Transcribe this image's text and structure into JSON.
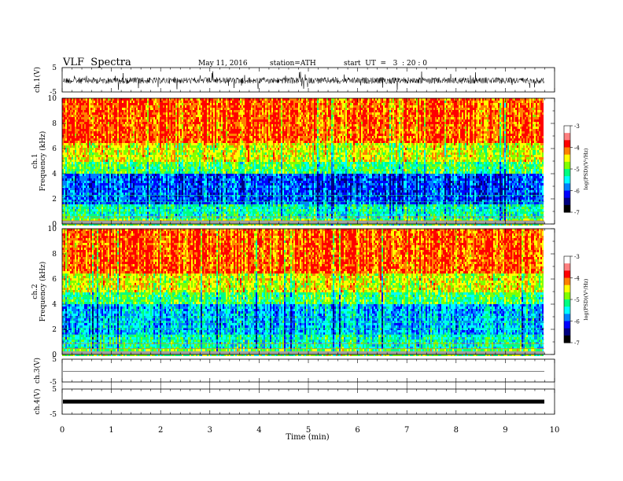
{
  "header": {
    "title": "VLF  Spectra",
    "date": "May 11, 2016",
    "station": "station=ATH",
    "start": "start  UT  =   3  : 20 : 0"
  },
  "chart_data": [
    {
      "type": "line",
      "name": "ch1-waveform",
      "ylabel": "ch.1(V)",
      "ylim": [
        -5,
        5
      ],
      "yticks": [
        "-5",
        "5"
      ],
      "xlim": [
        0,
        10
      ],
      "trace_color": "#000000"
    },
    {
      "type": "heatmap",
      "name": "ch1-spectrogram",
      "ylabel": "ch.1\nFrequency (kHz)",
      "ylabel_lines": [
        "ch.1",
        "Frequency  (kHz)"
      ],
      "ylim": [
        0,
        10
      ],
      "yticks": [
        "0",
        "2",
        "4",
        "6",
        "8",
        "10"
      ],
      "xlim": [
        0,
        9.8
      ],
      "colorbar": {
        "label": "log(PSD)(V²/Hz)",
        "range": [
          -7,
          -3
        ],
        "ticks": [
          "-3",
          "-4",
          "-5",
          "-6",
          "-7"
        ]
      },
      "profile_description": "Red at 6-10 kHz, yellow/green at 4-6 kHz, blue/cyan at 1.5-4 kHz, horizontal bands below 1.5 kHz"
    },
    {
      "type": "heatmap",
      "name": "ch2-spectrogram",
      "ylabel_lines": [
        "ch.2",
        "Frequency  (kHz)"
      ],
      "ylim": [
        0,
        10
      ],
      "yticks": [
        "0",
        "2",
        "4",
        "6",
        "8",
        "10"
      ],
      "xlim": [
        0,
        9.8
      ],
      "colorbar": {
        "label": "log(PSD)(V²/Hz)",
        "range": [
          -7,
          -3
        ],
        "ticks": [
          "-3",
          "-4",
          "-5",
          "-6",
          "-7"
        ]
      }
    },
    {
      "type": "line",
      "name": "ch3-waveform",
      "ylabel": "ch.3(V)",
      "ylim": [
        -5,
        5
      ],
      "yticks": [
        "-5",
        "5"
      ],
      "value": 0
    },
    {
      "type": "line",
      "name": "ch4-waveform",
      "ylabel": "ch.4(V)",
      "ylim": [
        -5,
        5
      ],
      "yticks": [
        "-5",
        "5"
      ],
      "value": 0
    }
  ],
  "xaxis": {
    "label": "Time  (min)",
    "ticks": [
      "0",
      "1",
      "2",
      "3",
      "4",
      "5",
      "6",
      "7",
      "8",
      "9",
      "10"
    ],
    "range": [
      0,
      10
    ]
  },
  "colors": {
    "scale": [
      "#000080",
      "#0000ff",
      "#0080ff",
      "#00ffff",
      "#00ff80",
      "#80ff00",
      "#ffff00",
      "#ff8000",
      "#ff0000",
      "#ff8080",
      "#ffffff"
    ]
  }
}
